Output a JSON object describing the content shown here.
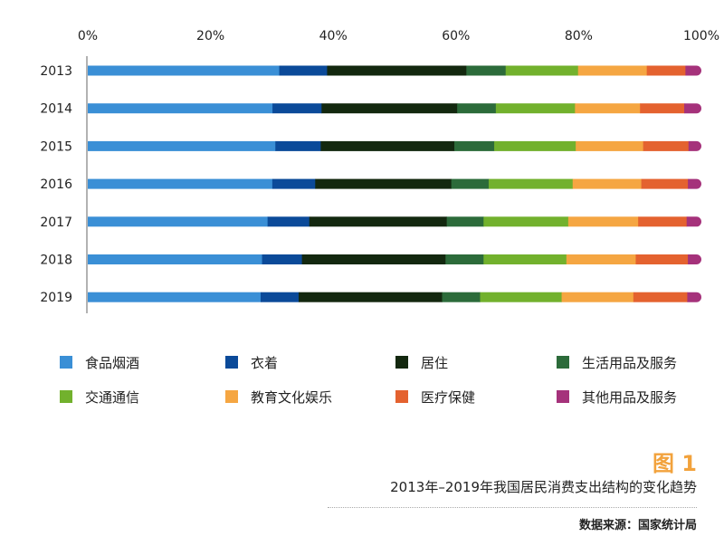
{
  "chart_data": {
    "type": "bar",
    "orientation": "horizontal",
    "stacked": "percent",
    "title": "2013年–2019年我国居民消费支出结构的变化趋势",
    "figure_label": "图 1",
    "source": "数据来源：国家统计局",
    "xlim": [
      0,
      100
    ],
    "x_ticks": [
      "0%",
      "20%",
      "40%",
      "60%",
      "80%",
      "100%"
    ],
    "categories": [
      "2013",
      "2014",
      "2015",
      "2016",
      "2017",
      "2018",
      "2019"
    ],
    "legend_position": "bottom",
    "grid": false,
    "series": [
      {
        "name": "食品烟酒",
        "color": "#3a8fd6",
        "values": [
          31.2,
          30.1,
          30.6,
          30.1,
          29.3,
          28.4,
          28.2
        ]
      },
      {
        "name": "衣着",
        "color": "#0b4a99",
        "values": [
          7.8,
          8.0,
          7.4,
          7.0,
          6.8,
          6.5,
          6.2
        ]
      },
      {
        "name": "居住",
        "color": "#13280f",
        "values": [
          22.7,
          22.1,
          21.8,
          22.2,
          22.4,
          23.4,
          23.4
        ]
      },
      {
        "name": "生活用品及服务",
        "color": "#2c6b3a",
        "values": [
          6.4,
          6.3,
          6.5,
          6.1,
          6.0,
          6.2,
          6.2
        ]
      },
      {
        "name": "交通通信",
        "color": "#72b12d",
        "values": [
          11.8,
          12.9,
          13.3,
          13.7,
          13.8,
          13.5,
          13.3
        ]
      },
      {
        "name": "教育文化娱乐",
        "color": "#f5a642",
        "values": [
          11.2,
          10.6,
          11.0,
          11.2,
          11.4,
          11.3,
          11.7
        ]
      },
      {
        "name": "医疗保健",
        "color": "#e4622f",
        "values": [
          6.3,
          7.2,
          7.4,
          7.6,
          7.9,
          8.5,
          8.8
        ]
      },
      {
        "name": "其他用品及服务",
        "color": "#a5327b",
        "values": [
          2.6,
          2.8,
          2.1,
          2.2,
          2.4,
          2.2,
          2.3
        ]
      }
    ]
  }
}
